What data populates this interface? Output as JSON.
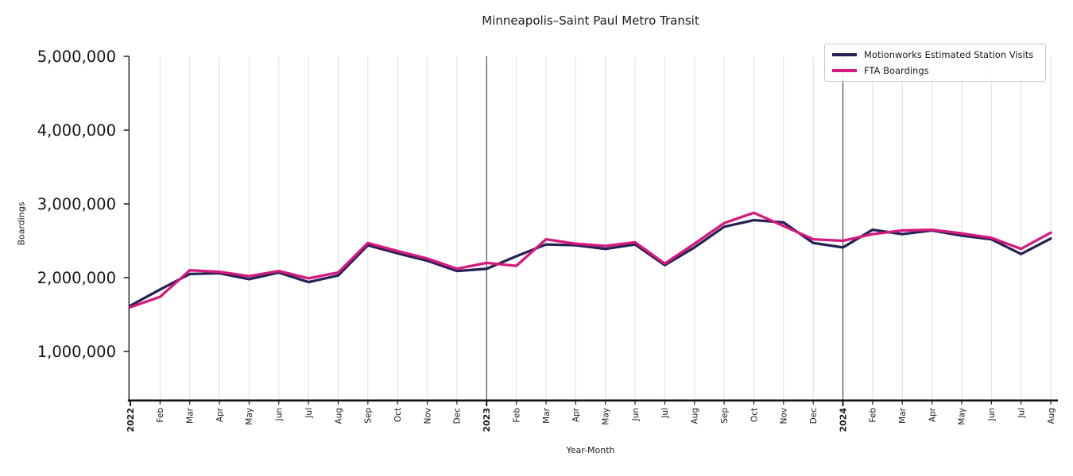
{
  "chart_data": {
    "type": "line",
    "title": "Minneapolis–Saint Paul Metro Transit",
    "xlabel": "Year-Month",
    "ylabel": "Boardings",
    "categories": [
      "2022",
      "Feb",
      "Mar",
      "Apr",
      "May",
      "Jun",
      "Jul",
      "Aug",
      "Sep",
      "Oct",
      "Nov",
      "Dec",
      "2023",
      "Feb",
      "Mar",
      "Apr",
      "May",
      "Jun",
      "Jul",
      "Aug",
      "Sep",
      "Oct",
      "Nov",
      "Dec",
      "2024",
      "Feb",
      "Mar",
      "Apr",
      "May",
      "Jun",
      "Jul",
      "Aug"
    ],
    "series": [
      {
        "name": "Motionworks Estimated Station Visits",
        "color": "#262254",
        "values": [
          1620000,
          1840000,
          2050000,
          2060000,
          1980000,
          2070000,
          1940000,
          2030000,
          2440000,
          2330000,
          2230000,
          2090000,
          2120000,
          2290000,
          2450000,
          2440000,
          2390000,
          2450000,
          2170000,
          2410000,
          2690000,
          2780000,
          2750000,
          2470000,
          2410000,
          2650000,
          2590000,
          2640000,
          2570000,
          2520000,
          2320000,
          2530000
        ]
      },
      {
        "name": "FTA Boardings",
        "color": "#d5197d",
        "values": [
          1600000,
          1740000,
          2100000,
          2080000,
          2020000,
          2090000,
          1990000,
          2070000,
          2470000,
          2360000,
          2260000,
          2120000,
          2200000,
          2160000,
          2520000,
          2460000,
          2430000,
          2480000,
          2190000,
          2460000,
          2740000,
          2880000,
          2700000,
          2520000,
          2500000,
          2590000,
          2640000,
          2650000,
          2600000,
          2540000,
          2390000,
          2610000
        ]
      }
    ],
    "y_tick_labels": [
      "1,000,000",
      "2,000,000",
      "3,000,000",
      "4,000,000",
      "5,000,000"
    ],
    "ylim": [
      360000,
      5000000
    ],
    "grid": "vertical monthly gridlines; dark vertical rule at each year start",
    "legend_position": "upper right"
  }
}
